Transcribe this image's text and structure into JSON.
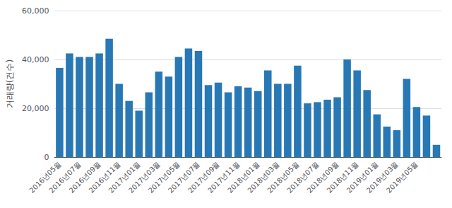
{
  "chart_data": {
    "type": "bar",
    "ylabel": "거래량(건수)",
    "categories": [
      "2016년05월",
      null,
      "2016년07월",
      null,
      "2016년09월",
      null,
      "2016년11월",
      null,
      "2017년01월",
      null,
      "2017년03월",
      null,
      "2017년05월",
      null,
      "2017년07월",
      null,
      "2017년09월",
      null,
      "2017년11월",
      null,
      "2018년01월",
      null,
      "2018년03월",
      null,
      "2018년05월",
      null,
      "2018년07월",
      null,
      "2018년09월",
      null,
      "2018년11월",
      null,
      "2019년01월",
      null,
      "2019년03월",
      null,
      "2019년05월",
      null,
      null
    ],
    "values": [
      36500,
      42500,
      41000,
      41000,
      42500,
      48500,
      30000,
      23000,
      19000,
      26500,
      35000,
      33000,
      41000,
      44500,
      43500,
      29500,
      30500,
      26500,
      29000,
      28500,
      27000,
      35500,
      30000,
      30000,
      37500,
      22000,
      22500,
      23500,
      24500,
      40000,
      35500,
      27500,
      17500,
      12500,
      11000,
      32000,
      20500,
      17000,
      5000
    ],
    "color": "#2878b5",
    "ylim": [
      0,
      60000
    ],
    "yticks": [
      0,
      {
        "value": 20000,
        "label": "20,000"
      },
      {
        "value": 40000,
        "label": "40,000"
      },
      {
        "value": 60000,
        "label": "60,000"
      }
    ],
    "grid": true
  }
}
